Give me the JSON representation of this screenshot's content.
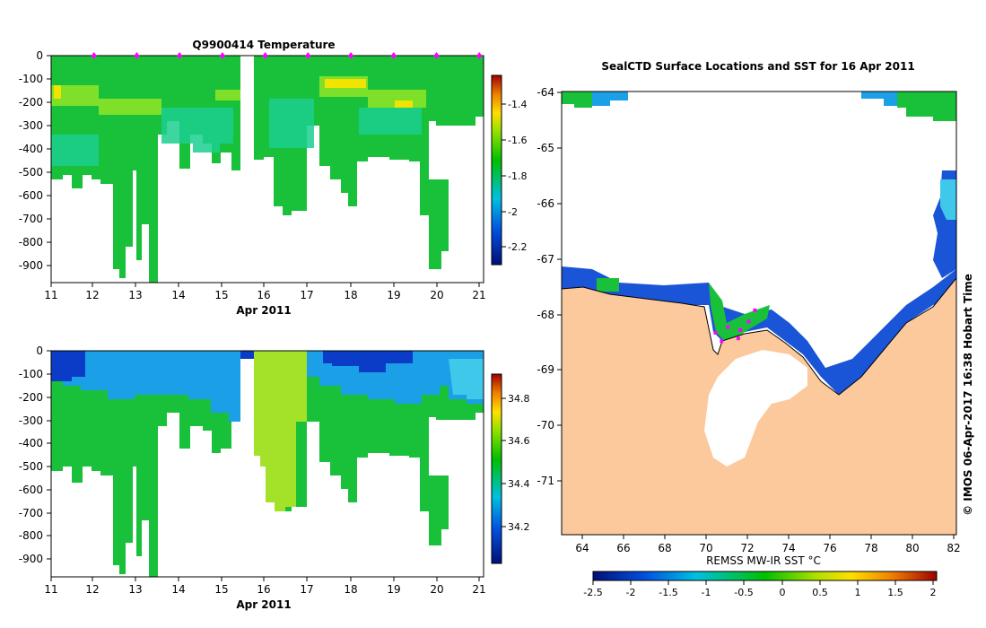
{
  "chart_data": [
    {
      "type": "heatmap",
      "title": "Q9900414  Temperature",
      "xlabel": "Apr 2011",
      "ylabel": "",
      "xlim": [
        11,
        21.1
      ],
      "ylim": [
        0,
        -985
      ],
      "x_ticks": [
        "11",
        "12",
        "13",
        "14",
        "15",
        "16",
        "17",
        "18",
        "19",
        "20",
        "21"
      ],
      "y_ticks": [
        "0",
        "-100",
        "-200",
        "-300",
        "-400",
        "-500",
        "-600",
        "-700",
        "-800",
        "-900"
      ],
      "colorbar": {
        "ticks": [
          "-1.4",
          "-1.6",
          "-1.8",
          "-2",
          "-2.2"
        ],
        "range": [
          -2.3,
          -1.2
        ]
      },
      "profiles": [
        {
          "day": 11.2,
          "max_depth": 510
        },
        {
          "day": 11.5,
          "max_depth": 575
        },
        {
          "day": 12.1,
          "max_depth": 540
        },
        {
          "day": 12.6,
          "max_depth": 955
        },
        {
          "day": 12.9,
          "max_depth": 830
        },
        {
          "day": 13.4,
          "max_depth": 975
        },
        {
          "day": 14.2,
          "max_depth": 430
        },
        {
          "day": 14.8,
          "max_depth": 380
        },
        {
          "day": 15.3,
          "max_depth": 430
        },
        {
          "day": 16.2,
          "max_depth": 650
        },
        {
          "day": 16.5,
          "max_depth": 690
        },
        {
          "day": 17.2,
          "max_depth": 500
        },
        {
          "day": 17.8,
          "max_depth": 630
        },
        {
          "day": 18.3,
          "max_depth": 600
        },
        {
          "day": 18.8,
          "max_depth": 450
        },
        {
          "day": 19.5,
          "max_depth": 440
        },
        {
          "day": 20.1,
          "max_depth": 840
        },
        {
          "day": 20.8,
          "max_depth": 290
        }
      ],
      "surface_markers": [
        12,
        13,
        14,
        15,
        16,
        17,
        18,
        19,
        20,
        21
      ]
    },
    {
      "type": "heatmap",
      "title": "",
      "xlabel": "Apr 2011",
      "ylabel": "",
      "xlim": [
        11,
        21.1
      ],
      "ylim": [
        0,
        -985
      ],
      "x_ticks": [
        "11",
        "12",
        "13",
        "14",
        "15",
        "16",
        "17",
        "18",
        "19",
        "20",
        "21"
      ],
      "y_ticks": [
        "0",
        "-100",
        "-200",
        "-300",
        "-400",
        "-500",
        "-600",
        "-700",
        "-800",
        "-900"
      ],
      "colorbar": {
        "ticks": [
          "34.8",
          "34.6",
          "34.4",
          "34.2"
        ],
        "range": [
          34.05,
          34.9
        ]
      }
    },
    {
      "type": "heatmap",
      "title": "SealCTD Surface Locations and SST for 16 Apr 2011",
      "xlabel": "REMSS MW-IR SST °C",
      "ylabel": "",
      "xlim": [
        63,
        82
      ],
      "ylim": [
        -71.9,
        -64
      ],
      "x_ticks": [
        "64",
        "66",
        "68",
        "70",
        "72",
        "74",
        "76",
        "78",
        "80",
        "82"
      ],
      "y_ticks": [
        "-64",
        "-65",
        "-66",
        "-67",
        "-68",
        "-69",
        "-70",
        "-71"
      ],
      "colorbar": {
        "ticks": [
          "-2.5",
          "-2",
          "-1.5",
          "-1",
          "-0.5",
          "0",
          "0.5",
          "1",
          "1.5",
          "2"
        ],
        "range": [
          -2.5,
          2.1
        ]
      },
      "seal_track": [
        [
          70.4,
          -68.3
        ],
        [
          70.7,
          -68.45
        ],
        [
          71.0,
          -68.2
        ],
        [
          71.5,
          -68.4
        ],
        [
          72.0,
          -68.1
        ],
        [
          72.3,
          -67.9
        ],
        [
          71.6,
          -68.25
        ]
      ],
      "credit": "© IMOS 06-Apr-2017 16:38 Hobart Time"
    }
  ],
  "colors": {
    "land": "#fbc99c",
    "ice": "#ffffff",
    "coast": "#000000",
    "track": "#ff00ff"
  }
}
